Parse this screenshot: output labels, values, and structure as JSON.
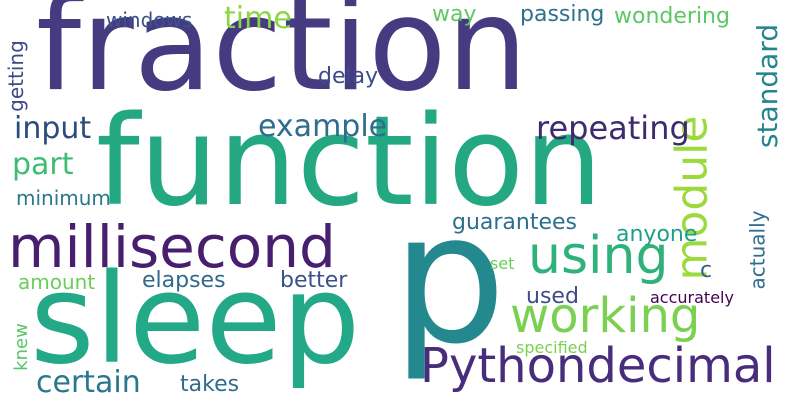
{
  "words": [
    {
      "text": "fraction",
      "color": "#463b80"
    },
    {
      "text": "function",
      "color": "#24a882"
    },
    {
      "text": "p",
      "color": "#23898e"
    },
    {
      "text": "sleep",
      "color": "#23a987"
    },
    {
      "text": "millisecond",
      "color": "#481e6e"
    },
    {
      "text": "using",
      "color": "#2fb27a"
    },
    {
      "text": "working",
      "color": "#7ad151"
    },
    {
      "text": "module",
      "color": "#9bd93c"
    },
    {
      "text": "Pythondecimal",
      "color": "#472d7b"
    },
    {
      "text": "repeating",
      "color": "#3e2b6e"
    },
    {
      "text": "example",
      "color": "#2e6d8e"
    },
    {
      "text": "input",
      "color": "#2b4c7e"
    },
    {
      "text": "standard",
      "color": "#25858e"
    },
    {
      "text": "part",
      "color": "#3fbc73"
    },
    {
      "text": "minimum",
      "color": "#2a778e"
    },
    {
      "text": "certain",
      "color": "#2a788e"
    },
    {
      "text": "time",
      "color": "#8bd646"
    },
    {
      "text": "windows",
      "color": "#3b528b"
    },
    {
      "text": "getting",
      "color": "#3f4889"
    },
    {
      "text": "delay",
      "color": "#3e4a89"
    },
    {
      "text": "way",
      "color": "#5ec962"
    },
    {
      "text": "passing",
      "color": "#2c728e"
    },
    {
      "text": "wondering",
      "color": "#5dc863"
    },
    {
      "text": "guarantees",
      "color": "#2d708e"
    },
    {
      "text": "anyone",
      "color": "#1f9f88"
    },
    {
      "text": "amount",
      "color": "#6ccd5a"
    },
    {
      "text": "elapses",
      "color": "#306a8e"
    },
    {
      "text": "better",
      "color": "#3b518b"
    },
    {
      "text": "c",
      "color": "#33638d"
    },
    {
      "text": "used",
      "color": "#3e4c8a"
    },
    {
      "text": "actually",
      "color": "#2e6e8e"
    },
    {
      "text": "set",
      "color": "#6ccd5a"
    },
    {
      "text": "accurately",
      "color": "#440154"
    },
    {
      "text": "knew",
      "color": "#56c667"
    },
    {
      "text": "specified",
      "color": "#7ad151"
    },
    {
      "text": "takes",
      "color": "#2f6c8e"
    }
  ]
}
